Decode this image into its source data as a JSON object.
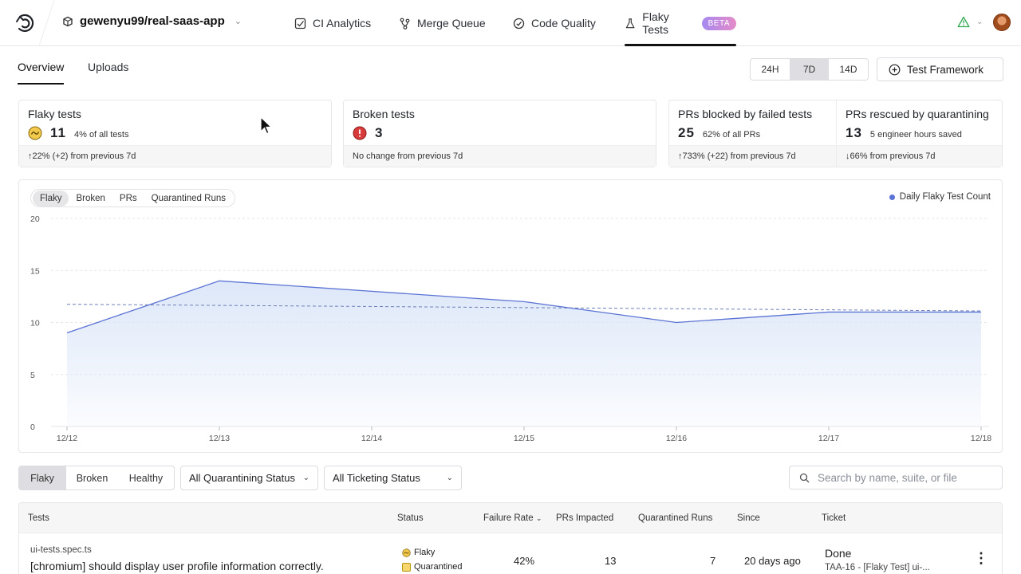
{
  "nav": {
    "repo": "gewenyu99/real-saas-app",
    "items": [
      {
        "label": "CI Analytics"
      },
      {
        "label": "Merge Queue"
      },
      {
        "label": "Code Quality"
      },
      {
        "label": "Flaky Tests"
      }
    ],
    "beta_badge": "BETA"
  },
  "subtabs": {
    "overview": "Overview",
    "uploads": "Uploads"
  },
  "range": {
    "options": [
      "24H",
      "7D",
      "14D"
    ],
    "selected": "7D"
  },
  "framework_button": "Test Framework",
  "cards": {
    "flaky": {
      "title": "Flaky tests",
      "value": "11",
      "sub": "4% of all tests",
      "foot": "↑22% (+2) from previous 7d"
    },
    "broken": {
      "title": "Broken tests",
      "value": "3",
      "foot": "No change from previous 7d"
    },
    "blocked": {
      "title": "PRs blocked by failed tests",
      "value": "25",
      "sub": "62% of all PRs",
      "foot": "↑733% (+22) from previous 7d"
    },
    "rescued": {
      "title": "PRs rescued by quarantining",
      "value": "13",
      "sub": "5 engineer hours saved",
      "foot": "↓66% from previous 7d"
    }
  },
  "chart_tabs": [
    "Flaky",
    "Broken",
    "PRs",
    "Quarantined Runs"
  ],
  "chart_legend": "Daily Flaky Test Count",
  "colors": {
    "line": "#5b73d4",
    "fill": "#dbe6f8",
    "accent_warn": "#d9b21c",
    "accent_error": "#d83b3b"
  },
  "chart_data": {
    "type": "area",
    "x": [
      "12/12",
      "12/13",
      "12/14",
      "12/15",
      "12/16",
      "12/17",
      "12/18"
    ],
    "series": [
      {
        "name": "Daily Flaky Test Count",
        "values": [
          9,
          14,
          13,
          12,
          10,
          11,
          11
        ]
      }
    ],
    "ylim": [
      0,
      20
    ],
    "yticks": [
      "0",
      "5",
      "10",
      "15",
      "20"
    ],
    "grid": true,
    "legend_position": "top-right"
  },
  "filters": {
    "segments": [
      "Flaky",
      "Broken",
      "Healthy"
    ],
    "selected_segment": "Flaky",
    "quarantining": "All Quarantining Status",
    "ticketing": "All Ticketing Status",
    "search_placeholder": "Search by name, suite, or file"
  },
  "table": {
    "headers": {
      "tests": "Tests",
      "status": "Status",
      "failure_rate": "Failure Rate",
      "prs": "PRs Impacted",
      "quarantined": "Quarantined Runs",
      "since": "Since",
      "ticket": "Ticket"
    },
    "row": {
      "file": "ui-tests.spec.ts",
      "name": "[chromium] should display user profile information correctly.",
      "status1": "Flaky",
      "status2": "Quarantined",
      "failure_rate": "42%",
      "prs": "13",
      "quarantined": "7",
      "since": "20 days ago",
      "ticket_status": "Done",
      "ticket_ref": "TAA-16 - [Flaky Test] ui-..."
    }
  }
}
